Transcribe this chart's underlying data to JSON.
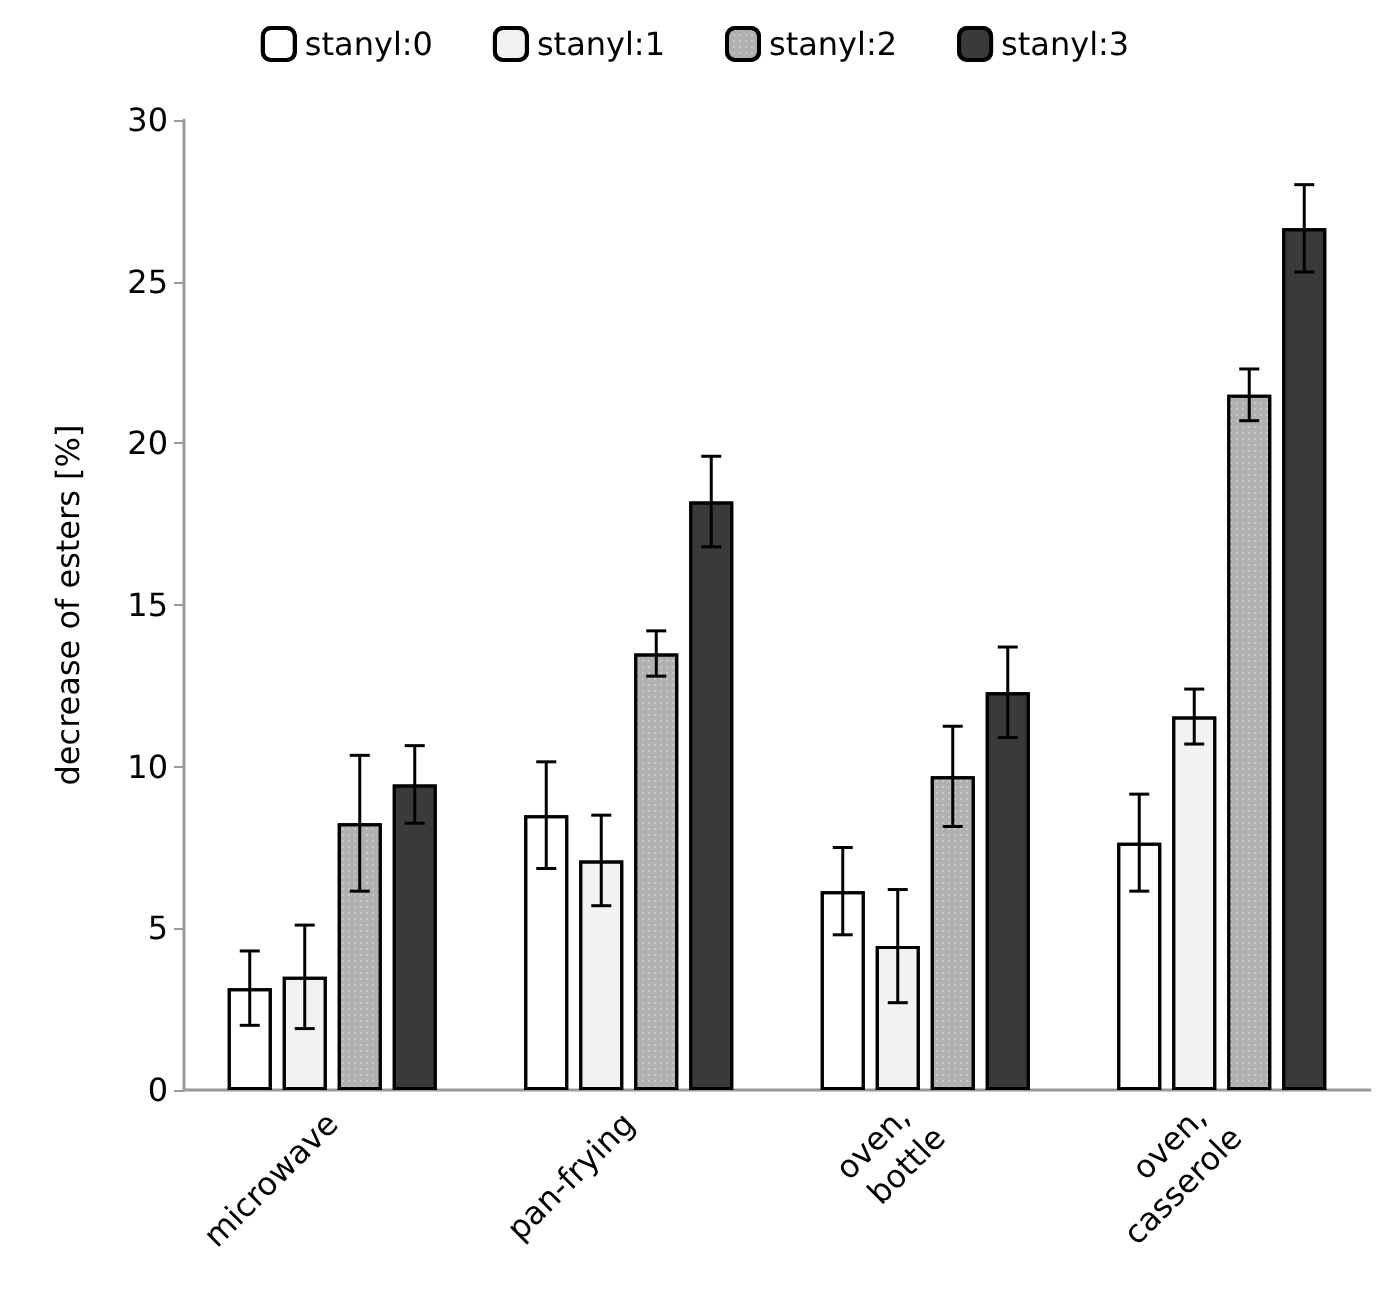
{
  "chart_data": {
    "type": "bar",
    "ylabel": "decrease of esters [%]",
    "categories": [
      "microwave",
      "pan-frying",
      "oven, bottle",
      "oven, casserole"
    ],
    "series": [
      {
        "name": "stanyl:0",
        "color": "#ffffff",
        "values": [
          3.15,
          8.5,
          6.15,
          7.65
        ],
        "errors": [
          1.15,
          1.65,
          1.35,
          1.5
        ]
      },
      {
        "name": "stanyl:1",
        "color": "#f2f2f2",
        "values": [
          3.5,
          7.1,
          4.45,
          11.55
        ],
        "errors": [
          1.6,
          1.4,
          1.75,
          0.85
        ]
      },
      {
        "name": "stanyl:2",
        "color": "#b0b0b0",
        "values": [
          8.25,
          13.5,
          9.7,
          21.5
        ],
        "errors": [
          2.1,
          0.7,
          1.55,
          0.8
        ]
      },
      {
        "name": "stanyl:3",
        "color": "#3a3a3a",
        "values": [
          9.45,
          18.2,
          12.3,
          26.65
        ],
        "errors": [
          1.2,
          1.4,
          1.4,
          1.35
        ]
      }
    ],
    "ylim": [
      0,
      30
    ],
    "yticks": [
      0,
      5,
      10,
      15,
      20,
      25,
      30
    ],
    "grid": false,
    "legend": "top"
  }
}
